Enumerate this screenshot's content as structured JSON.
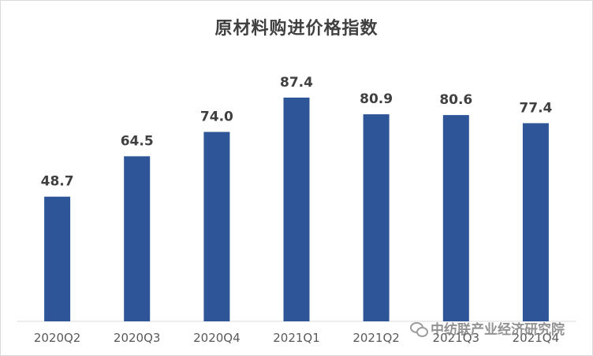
{
  "chart_data": {
    "type": "bar",
    "title": "原材料购进价格指数",
    "categories": [
      "2020Q2",
      "2020Q3",
      "2020Q4",
      "2021Q1",
      "2021Q2",
      "2021Q3",
      "2021Q4"
    ],
    "values": [
      48.7,
      64.5,
      74.0,
      87.4,
      80.9,
      80.6,
      77.4
    ],
    "value_labels": [
      "48.7",
      "64.5",
      "74.0",
      "87.4",
      "80.9",
      "80.6",
      "77.4"
    ],
    "ylim": [
      0,
      100
    ],
    "grid": false,
    "bar_color": "#2e5597",
    "xlabel": "",
    "ylabel": ""
  },
  "watermark": {
    "text": "中纺联产业经济研究院",
    "icon": "wechat-icon"
  }
}
